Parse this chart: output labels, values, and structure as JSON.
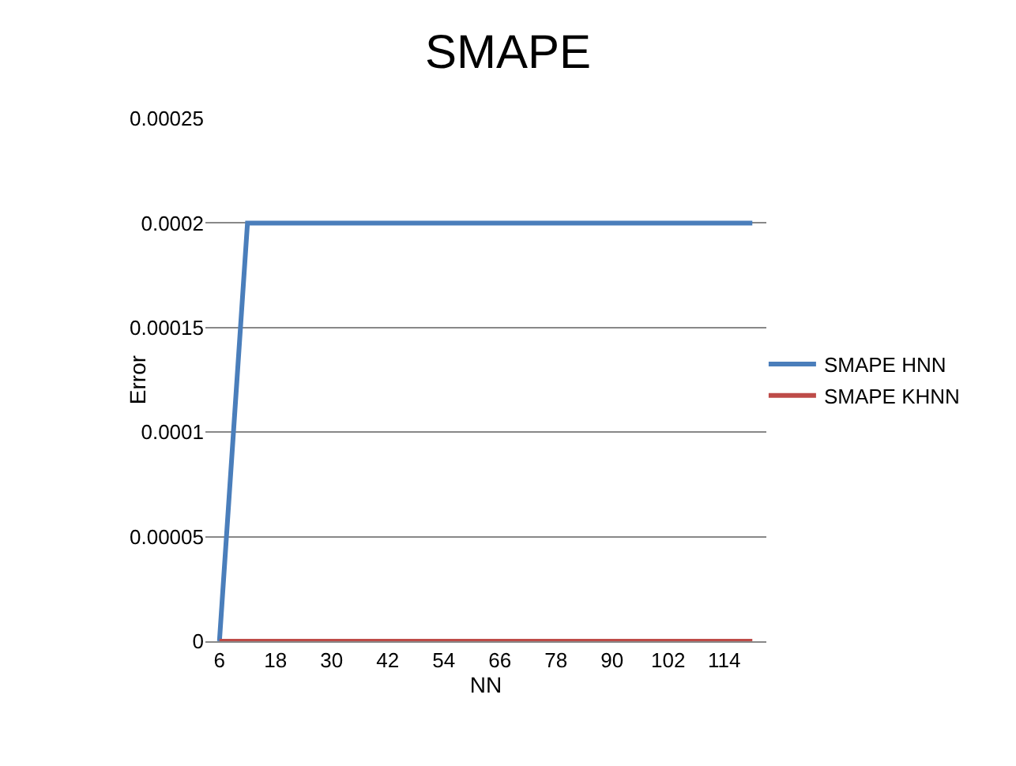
{
  "chart_data": {
    "type": "line",
    "title": "SMAPE",
    "xlabel": "NN",
    "ylabel": "Error",
    "categories": [
      "6",
      null,
      "18",
      null,
      "30",
      null,
      "42",
      null,
      "54",
      null,
      "66",
      null,
      "78",
      null,
      "90",
      null,
      "102",
      null,
      "114",
      null
    ],
    "series": [
      {
        "name": "SMAPE HNN",
        "color": "#4a7ebb",
        "values": [
          0,
          0.0002,
          0.0002,
          0.0002,
          0.0002,
          0.0002,
          0.0002,
          0.0002,
          0.0002,
          0.0002,
          0.0002,
          0.0002,
          0.0002,
          0.0002,
          0.0002,
          0.0002,
          0.0002,
          0.0002,
          0.0002,
          0.0002
        ]
      },
      {
        "name": "SMAPE KHNN",
        "color": "#be4b48",
        "values": [
          0,
          0,
          0,
          0,
          0,
          0,
          0,
          0,
          0,
          0,
          0,
          0,
          0,
          0,
          0,
          0,
          0,
          0,
          0,
          0
        ]
      }
    ],
    "ylim": [
      0,
      0.00025
    ],
    "yticks": [
      0,
      {
        "value": 5e-05,
        "label": "0.00005"
      },
      {
        "value": 0.0001,
        "label": "0.0001"
      },
      {
        "value": 0.00015,
        "label": "0.00015"
      },
      {
        "value": 0.0002,
        "label": "0.0002"
      },
      {
        "value": 0.00025,
        "label": "0.00025"
      }
    ],
    "grid": "y",
    "legend": "right",
    "marker": "none",
    "line_style": "solid"
  }
}
